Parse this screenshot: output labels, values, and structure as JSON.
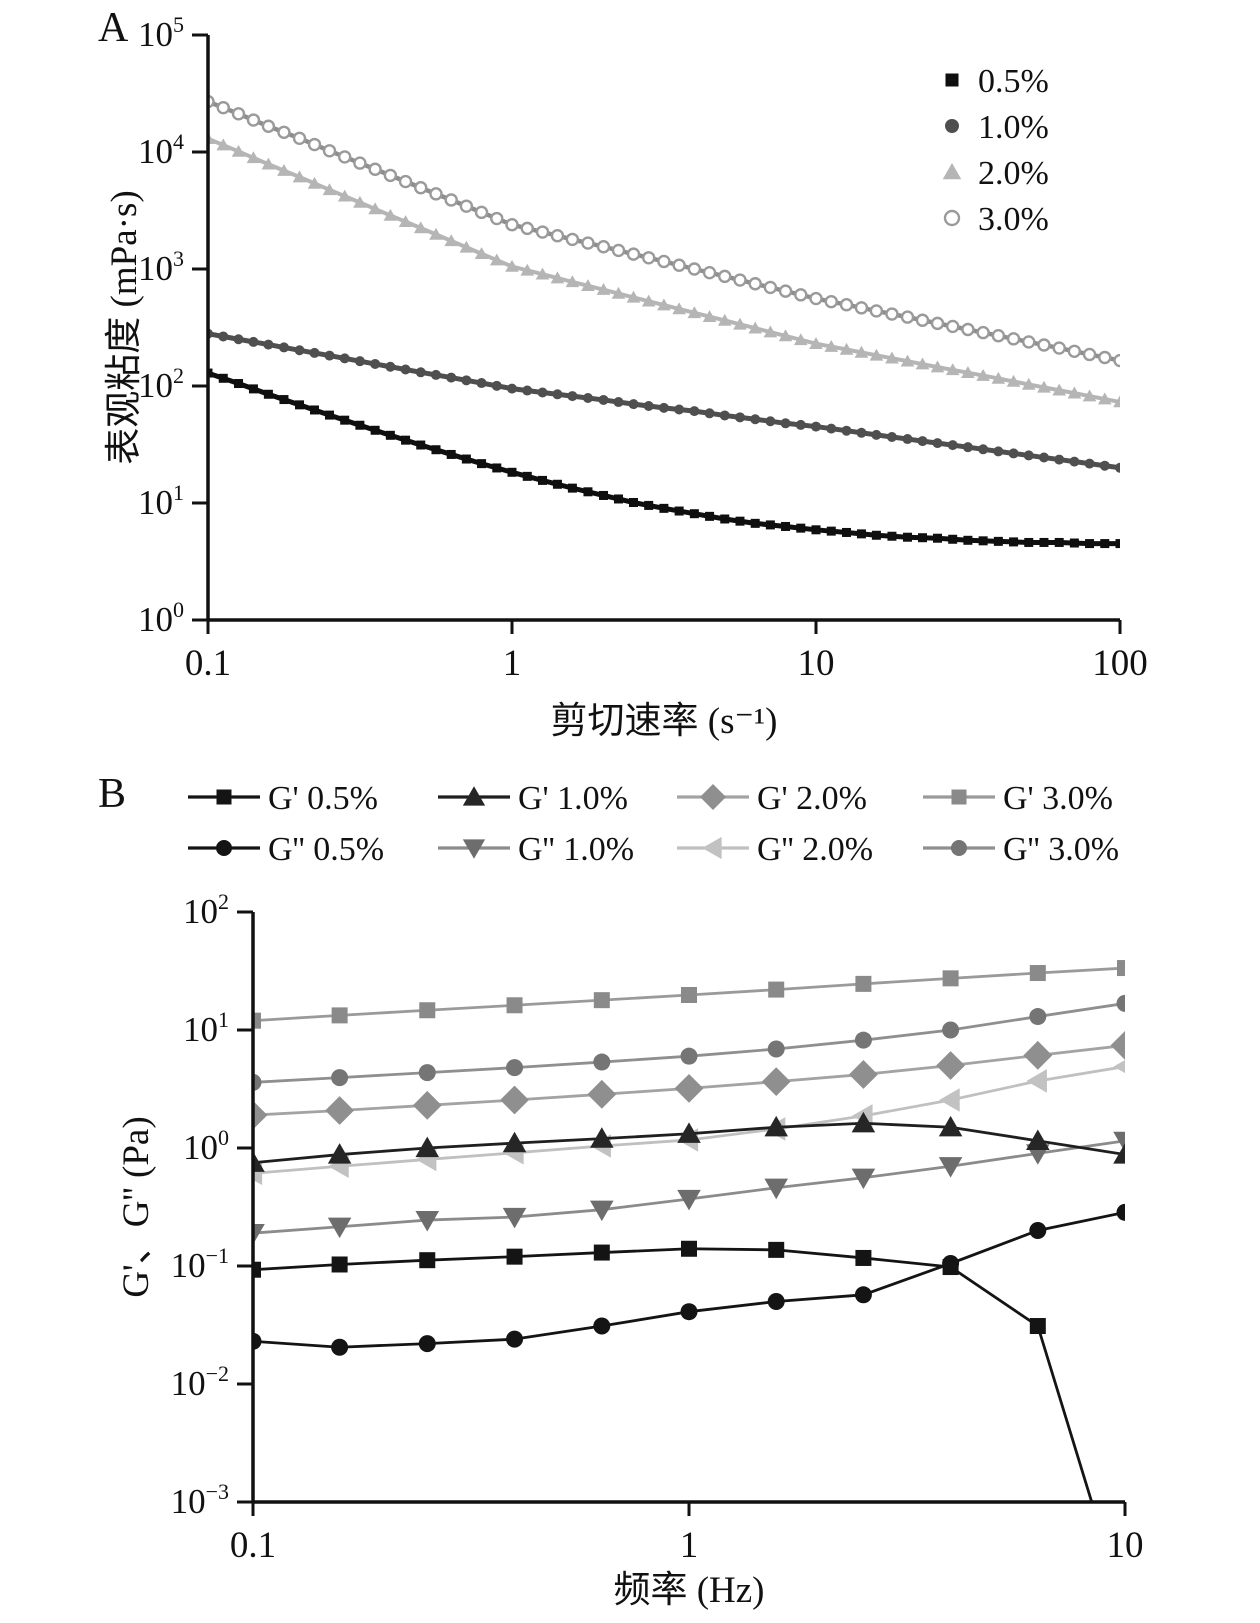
{
  "figure": {
    "description": "Two-panel rheology figure",
    "text_color": "#111111",
    "background": "#ffffff"
  },
  "chart_data": [
    {
      "id": "A",
      "panel_label": "A",
      "type": "line",
      "x_scale": "log",
      "y_scale": "log",
      "xlabel": "剪切速率 (s⁻¹)",
      "ylabel": "表观粘度 (mPa·s)",
      "xlim": [
        0.1,
        100
      ],
      "ylim": [
        1,
        100000
      ],
      "x_ticks": [
        0.1,
        1,
        10,
        100
      ],
      "x_tick_labels": [
        "0.1",
        "1",
        "10",
        "100"
      ],
      "y_tick_exponents": [
        0,
        1,
        2,
        3,
        4,
        5
      ],
      "grid": false,
      "legend_position": "top-right-inside",
      "x": [
        0.1,
        0.126,
        0.158,
        0.2,
        0.251,
        0.316,
        0.398,
        0.501,
        0.631,
        0.794,
        1,
        1.26,
        1.58,
        2,
        2.51,
        3.16,
        3.98,
        5.01,
        6.31,
        7.94,
        10,
        12.6,
        15.8,
        20,
        25.1,
        31.6,
        39.8,
        50.1,
        63.1,
        79.4,
        100
      ],
      "series": [
        {
          "name": "0.5%",
          "marker": "square",
          "color": "#0f0f0f",
          "line_color": "#0f0f0f",
          "y": [
            129,
            105,
            85,
            69,
            56.4,
            46.2,
            37.9,
            31.3,
            26,
            21.7,
            18.3,
            15.6,
            13.4,
            11.6,
            10.1,
            9.0,
            8.1,
            7.3,
            6.7,
            6.3,
            5.9,
            5.6,
            5.3,
            5.1,
            5.0,
            4.8,
            4.7,
            4.6,
            4.6,
            4.5,
            4.5
          ]
        },
        {
          "name": "1.0%",
          "marker": "circle",
          "color": "#4f4f4f",
          "line_color": "#4f4f4f",
          "y": [
            280,
            251,
            226,
            202,
            182,
            163,
            146,
            131,
            118,
            106,
            95,
            88,
            82,
            76,
            70,
            65,
            61,
            56,
            52,
            48,
            45,
            41.5,
            38.2,
            35.2,
            32.5,
            30,
            27.6,
            25.5,
            23.5,
            21.7,
            20
          ]
        },
        {
          "name": "2.0%",
          "marker": "triangle-up",
          "color": "#b5b5b5",
          "line_color": "#b5b5b5",
          "y": [
            13000,
            10110,
            7860,
            6110,
            4750,
            3700,
            2870,
            2240,
            1740,
            1350,
            1050,
            903,
            776,
            666,
            572,
            492,
            422,
            363,
            312,
            268,
            230,
            205,
            183,
            163,
            145,
            130,
            116,
            103,
            92,
            82,
            73
          ]
        },
        {
          "name": "3.0%",
          "marker": "open-circle",
          "color": "#9a9a9a",
          "line_color": "#8d8d8d",
          "y": [
            27000,
            21200,
            16600,
            13100,
            10240,
            8040,
            6310,
            4950,
            3890,
            3050,
            2390,
            2070,
            1790,
            1550,
            1340,
            1160,
            1000,
            865,
            748,
            647,
            559,
            495,
            438,
            388,
            343,
            304,
            269,
            238,
            211,
            186,
            165
          ]
        }
      ]
    },
    {
      "id": "B",
      "panel_label": "B",
      "type": "line",
      "x_scale": "log",
      "y_scale": "log",
      "xlabel": "频率 (Hz)",
      "ylabel": "G'、G'' (Pa)",
      "xlim": [
        0.1,
        10
      ],
      "ylim": [
        0.001,
        100
      ],
      "x_ticks": [
        0.1,
        1,
        10
      ],
      "x_tick_labels": [
        "0.1",
        "1",
        "10"
      ],
      "y_tick_exponents": [
        -3,
        -2,
        -1,
        0,
        1,
        2
      ],
      "grid": false,
      "legend_position": "top-outside-two-rows",
      "x": [
        0.1,
        0.158,
        0.251,
        0.398,
        0.631,
        1,
        1.585,
        2.512,
        3.981,
        6.31,
        10
      ],
      "series": [
        {
          "name": "G' 0.5%",
          "marker": "square",
          "color": "#141414",
          "line_color": "#141414",
          "y": [
            0.093,
            0.103,
            0.112,
            0.12,
            0.13,
            0.14,
            0.137,
            0.117,
            0.098,
            0.031,
            0.00012
          ]
        },
        {
          "name": "G' 1.0%",
          "marker": "triangle-up",
          "color": "#262626",
          "line_color": "#1f1f1f",
          "y": [
            0.75,
            0.88,
            1.0,
            1.1,
            1.2,
            1.32,
            1.5,
            1.62,
            1.5,
            1.15,
            0.88
          ]
        },
        {
          "name": "G' 2.0%",
          "marker": "diamond",
          "color": "#8f8f8f",
          "line_color": "#a3a3a3",
          "y": [
            1.9,
            2.08,
            2.3,
            2.55,
            2.85,
            3.2,
            3.65,
            4.2,
            5.0,
            6.1,
            7.4
          ]
        },
        {
          "name": "G' 3.0%",
          "marker": "square",
          "color": "#8a8a8a",
          "line_color": "#9a9a9a",
          "y": [
            12.0,
            13.3,
            14.7,
            16.2,
            17.9,
            19.8,
            22.0,
            24.6,
            27.4,
            30.4,
            33.5
          ]
        },
        {
          "name": "G'' 0.5%",
          "marker": "circle",
          "color": "#141414",
          "line_color": "#141414",
          "y": [
            0.023,
            0.0205,
            0.022,
            0.024,
            0.031,
            0.041,
            0.05,
            0.057,
            0.105,
            0.2,
            0.285
          ]
        },
        {
          "name": "G'' 1.0%",
          "marker": "triangle-down",
          "color": "#6d6d6d",
          "line_color": "#8b8b8b",
          "y": [
            0.19,
            0.215,
            0.245,
            0.26,
            0.3,
            0.37,
            0.46,
            0.56,
            0.7,
            0.9,
            1.15
          ]
        },
        {
          "name": "G'' 2.0%",
          "marker": "triangle-left",
          "color": "#c2c2c2",
          "line_color": "#c0c0c0",
          "y": [
            0.61,
            0.7,
            0.8,
            0.91,
            1.04,
            1.17,
            1.45,
            1.87,
            2.55,
            3.7,
            4.9
          ]
        },
        {
          "name": "G'' 3.0%",
          "marker": "circle",
          "color": "#757575",
          "line_color": "#8f8f8f",
          "y": [
            3.6,
            3.95,
            4.35,
            4.8,
            5.35,
            6.0,
            6.9,
            8.2,
            10.0,
            13.0,
            16.8
          ]
        }
      ]
    }
  ]
}
